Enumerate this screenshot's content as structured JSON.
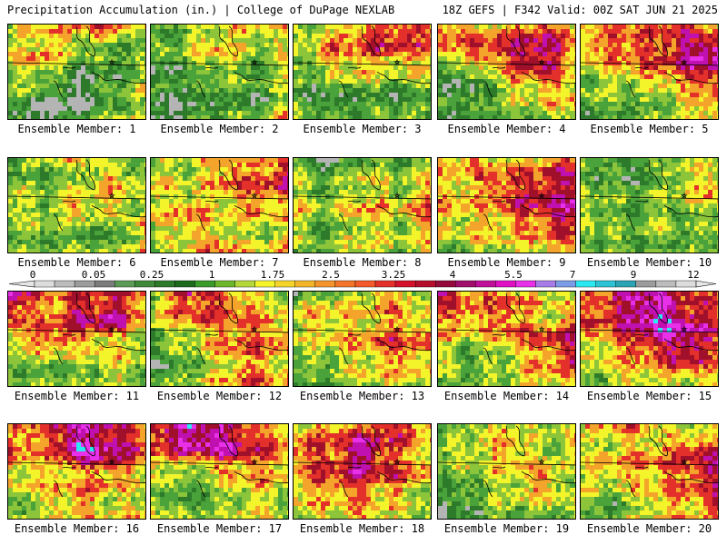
{
  "header": {
    "left": "Precipitation Accumulation (in.) | College of DuPage NEXLAB",
    "right": "18Z GEFS | F342 Valid: 00Z SAT JUN 21 2025"
  },
  "colorbar": {
    "ticks": [
      "0",
      "0.05",
      "0.25",
      "1",
      "1.75",
      "2.5",
      "3.25",
      "4",
      "5.5",
      "7",
      "9",
      "12"
    ],
    "colors": [
      "#dcdcdc",
      "#bcbcbc",
      "#9c9c9c",
      "#7c7c7c",
      "#5c9a56",
      "#3f8a3a",
      "#2d7a2a",
      "#1d6b1d",
      "#3a9a2a",
      "#6cb82a",
      "#b4d83a",
      "#f4f42a",
      "#f4d42a",
      "#f4b42a",
      "#f4942a",
      "#f4742a",
      "#f45a2a",
      "#e4302a",
      "#d4102a",
      "#b40c2a",
      "#940a3a",
      "#a0106a",
      "#c0109a",
      "#e010c4",
      "#e830e8",
      "#a87ce8",
      "#7c9ce8",
      "#2ce8f0",
      "#2cc4d4",
      "#2ca4b4",
      "#9c9c9c",
      "#bcbcbc",
      "#dcdcdc"
    ]
  },
  "palette": {
    "gray": "#b4b4b4",
    "dkgreen": "#2d7a2a",
    "green": "#4aa23a",
    "ltgreen": "#8cc43a",
    "yellow": "#f4f42a",
    "orange": "#f4a42a",
    "red": "#e4302a",
    "maroon": "#a0102a",
    "magenta": "#c010b0",
    "pink": "#e830e8",
    "cyan": "#2ce8f0"
  },
  "members": [
    {
      "label": "Ensemble Member: 1",
      "levels": [
        3,
        4,
        5,
        6,
        3,
        4,
        5,
        3,
        2,
        2,
        3,
        4,
        1,
        2,
        3,
        2,
        1,
        0,
        2,
        3,
        1,
        0,
        2,
        3,
        4
      ]
    },
    {
      "label": "Ensemble Member: 2",
      "levels": [
        2,
        3,
        4,
        5,
        4,
        2,
        3,
        5,
        3,
        3,
        1,
        2,
        3,
        2,
        4,
        1,
        1,
        2,
        1,
        3,
        0,
        1,
        2,
        3,
        5
      ]
    },
    {
      "label": "Ensemble Member: 3",
      "levels": [
        3,
        4,
        5,
        6,
        6,
        3,
        5,
        6,
        6,
        5,
        2,
        3,
        4,
        3,
        4,
        2,
        1,
        2,
        1,
        2,
        3,
        2,
        2,
        3,
        2
      ]
    },
    {
      "label": "Ensemble Member: 4",
      "levels": [
        6,
        4,
        5,
        6,
        5,
        5,
        6,
        7,
        8,
        5,
        1,
        2,
        5,
        6,
        4,
        2,
        1,
        3,
        4,
        5,
        1,
        2,
        3,
        2,
        4
      ]
    },
    {
      "label": "Ensemble Member: 5",
      "levels": [
        4,
        5,
        5,
        6,
        4,
        5,
        6,
        6,
        8,
        9,
        3,
        4,
        5,
        6,
        7,
        3,
        2,
        2,
        4,
        5,
        1,
        2,
        3,
        4,
        5
      ]
    },
    {
      "label": "Ensemble Member: 6",
      "levels": [
        2,
        3,
        4,
        3,
        2,
        3,
        2,
        3,
        5,
        3,
        4,
        3,
        5,
        4,
        3,
        2,
        3,
        2,
        1,
        5,
        3,
        2,
        4,
        3,
        4
      ]
    },
    {
      "label": "Ensemble Member: 7",
      "levels": [
        3,
        4,
        5,
        5,
        6,
        4,
        3,
        5,
        6,
        7,
        4,
        5,
        4,
        5,
        4,
        3,
        5,
        4,
        3,
        4,
        2,
        3,
        6,
        4,
        5
      ]
    },
    {
      "label": "Ensemble Member: 8",
      "levels": [
        2,
        1,
        3,
        2,
        3,
        3,
        2,
        4,
        3,
        4,
        4,
        3,
        5,
        4,
        6,
        3,
        2,
        4,
        3,
        5,
        2,
        3,
        4,
        3,
        4
      ]
    },
    {
      "label": "Ensemble Member: 9",
      "levels": [
        4,
        5,
        4,
        5,
        6,
        4,
        5,
        6,
        7,
        7,
        5,
        4,
        6,
        7,
        8,
        3,
        4,
        4,
        5,
        6,
        2,
        3,
        4,
        5,
        4
      ]
    },
    {
      "label": "Ensemble Member: 10",
      "levels": [
        2,
        1,
        2,
        3,
        3,
        3,
        2,
        2,
        4,
        5,
        4,
        2,
        3,
        3,
        4,
        3,
        2,
        3,
        2,
        3,
        2,
        3,
        2,
        3,
        3
      ]
    },
    {
      "label": "Ensemble Member: 11",
      "levels": [
        8,
        5,
        6,
        6,
        5,
        6,
        5,
        7,
        8,
        5,
        4,
        6,
        5,
        4,
        3,
        3,
        2,
        3,
        4,
        3,
        2,
        3,
        2,
        3,
        2
      ]
    },
    {
      "label": "Ensemble Member: 12",
      "levels": [
        3,
        7,
        6,
        4,
        3,
        4,
        5,
        6,
        5,
        4,
        2,
        3,
        5,
        6,
        5,
        1,
        2,
        4,
        5,
        4,
        2,
        3,
        4,
        6,
        5
      ]
    },
    {
      "label": "Ensemble Member: 13",
      "levels": [
        2,
        3,
        4,
        5,
        3,
        4,
        5,
        4,
        5,
        3,
        3,
        4,
        5,
        6,
        5,
        2,
        3,
        4,
        5,
        4,
        1,
        2,
        3,
        4,
        3
      ]
    },
    {
      "label": "Ensemble Member: 14",
      "levels": [
        7,
        5,
        5,
        4,
        3,
        6,
        5,
        6,
        4,
        5,
        4,
        3,
        5,
        6,
        7,
        3,
        2,
        3,
        5,
        6,
        2,
        3,
        4,
        5,
        4
      ]
    },
    {
      "label": "Ensemble Member: 15",
      "levels": [
        5,
        6,
        8,
        6,
        5,
        6,
        7,
        9,
        8,
        6,
        4,
        5,
        7,
        8,
        6,
        3,
        4,
        5,
        6,
        5,
        2,
        3,
        4,
        3,
        4
      ]
    },
    {
      "label": "Ensemble Member: 16",
      "levels": [
        5,
        6,
        8,
        7,
        5,
        6,
        5,
        9,
        8,
        6,
        4,
        4,
        5,
        5,
        4,
        3,
        4,
        5,
        4,
        3,
        2,
        3,
        4,
        4,
        5
      ]
    },
    {
      "label": "Ensemble Member: 17",
      "levels": [
        7,
        9,
        8,
        6,
        5,
        6,
        7,
        8,
        6,
        5,
        4,
        2,
        4,
        5,
        4,
        3,
        2,
        3,
        4,
        3,
        4,
        2,
        3,
        4,
        3
      ]
    },
    {
      "label": "Ensemble Member: 18",
      "levels": [
        4,
        5,
        6,
        7,
        5,
        6,
        6,
        8,
        5,
        4,
        5,
        6,
        7,
        6,
        5,
        4,
        5,
        5,
        4,
        3,
        3,
        4,
        5,
        4,
        3
      ]
    },
    {
      "label": "Ensemble Member: 19",
      "levels": [
        2,
        3,
        4,
        3,
        4,
        3,
        4,
        5,
        3,
        4,
        2,
        3,
        4,
        5,
        3,
        1,
        2,
        3,
        4,
        3,
        0,
        2,
        3,
        2,
        3
      ]
    },
    {
      "label": "Ensemble Member: 20",
      "levels": [
        4,
        5,
        4,
        3,
        3,
        3,
        4,
        5,
        6,
        7,
        4,
        5,
        5,
        6,
        7,
        3,
        2,
        4,
        5,
        6,
        2,
        3,
        4,
        5,
        5
      ]
    }
  ]
}
